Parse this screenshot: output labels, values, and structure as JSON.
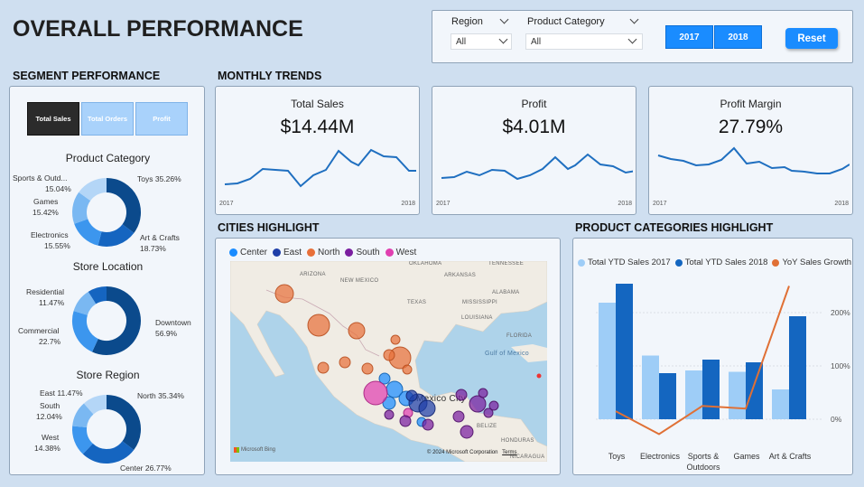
{
  "header": {
    "title": "OVERALL PERFORMANCE"
  },
  "filters": {
    "region_label": "Region",
    "region_value": "All",
    "category_label": "Product Category",
    "category_value": "All",
    "years": [
      "2017",
      "2018"
    ],
    "reset_label": "Reset"
  },
  "segment": {
    "title": "SEGMENT PERFORMANCE",
    "buttons": [
      "Total Sales",
      "Total Orders",
      "Profit"
    ],
    "product_category": {
      "title": "Product Category",
      "labels": [
        "Sports & Outd...",
        "15.04%",
        "Games",
        "15.42%",
        "Electronics",
        "15.55%",
        "Toys 35.26%",
        "Art & Crafts",
        "18.73%"
      ]
    },
    "store_location": {
      "title": "Store Location",
      "labels": [
        "Residential",
        "11.47%",
        "Commercial",
        "22.7%",
        "Downtown",
        "56.9%"
      ]
    },
    "store_region": {
      "title": "Store Region",
      "labels": [
        "East 11.47%",
        "South",
        "12.04%",
        "West",
        "14.38%",
        "North 35.34%",
        "Center 26.77%"
      ]
    }
  },
  "monthly": {
    "title": "MONTHLY TRENDS",
    "kpis": [
      {
        "title": "Total Sales",
        "value": "$14.44M",
        "start": "2017",
        "end": "2018"
      },
      {
        "title": "Profit",
        "value": "$4.01M",
        "start": "2017",
        "end": "2018"
      },
      {
        "title": "Profit Margin",
        "value": "27.79%",
        "start": "2017",
        "end": "2018"
      }
    ],
    "line_color": "#1f6fc0"
  },
  "cities": {
    "title": "CITIES HIGHLIGHT",
    "legend": [
      {
        "name": "Center",
        "color": "#1a8cff"
      },
      {
        "name": "East",
        "color": "#1f3fa8"
      },
      {
        "name": "North",
        "color": "#e8703a"
      },
      {
        "name": "South",
        "color": "#7a1fa0"
      },
      {
        "name": "West",
        "color": "#e040b0"
      }
    ],
    "map_labels": [
      "ARIZONA",
      "NEW MEXICO",
      "OKLAHOMA",
      "ARKANSAS",
      "TENNESSEE",
      "TEXAS",
      "ALABAMA",
      "MISSISSIPPI",
      "LOUISIANA",
      "FLORIDA",
      "Gulf of Mexico",
      "Mexico City",
      "BELIZE",
      "HONDURAS",
      "NICARAGUA"
    ],
    "attribution": "© 2024 Microsoft Corporation",
    "terms": "Terms",
    "bing": "Microsoft Bing"
  },
  "products": {
    "title": "PRODUCT CATEGORIES HIGHLIGHT",
    "legend": [
      {
        "name": "Total YTD Sales 2017",
        "color": "#9ecdf7"
      },
      {
        "name": "Total YTD Sales 2018",
        "color": "#1466c0"
      },
      {
        "name": "YoY Sales Growth",
        "color": "#e07035"
      }
    ],
    "y2_ticks": [
      "200%",
      "100%",
      "0%"
    ]
  },
  "chart_data": {
    "type": "bar",
    "categories": [
      "Toys",
      "Electronics",
      "Sports & Outdoors",
      "Games",
      "Art & Crafts"
    ],
    "series": [
      {
        "name": "Total YTD Sales 2017",
        "values": [
          0.86,
          0.47,
          0.36,
          0.35,
          0.22
        ]
      },
      {
        "name": "Total YTD Sales 2018",
        "values": [
          1.0,
          0.34,
          0.44,
          0.42,
          0.76
        ]
      },
      {
        "name": "YoY Sales Growth",
        "values": [
          15,
          -28,
          25,
          20,
          250
        ]
      }
    ],
    "y2_ticks": [
      "200%",
      "100%",
      "0%"
    ]
  }
}
